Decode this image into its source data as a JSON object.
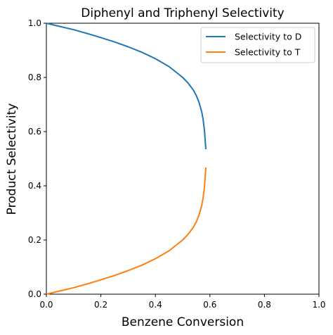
{
  "chart_data": {
    "type": "line",
    "title": "Diphenyl and Triphenyl Selectivity",
    "xlabel": "Benzene Conversion",
    "ylabel": "Product Selectivity",
    "xlim": [
      0.0,
      1.0
    ],
    "ylim": [
      0.0,
      1.0
    ],
    "xticks": [
      "0.0",
      "0.2",
      "0.4",
      "0.6",
      "0.8",
      "1.0"
    ],
    "yticks": [
      "0.0",
      "0.2",
      "0.4",
      "0.6",
      "0.8",
      "1.0"
    ],
    "grid": false,
    "legend_position": "upper-right",
    "series": [
      {
        "name": "Selectivity to D",
        "color": "#1f77b4",
        "x": [
          0.0,
          0.05,
          0.1,
          0.15,
          0.2,
          0.25,
          0.3,
          0.35,
          0.4,
          0.45,
          0.5,
          0.52,
          0.54,
          0.55,
          0.56,
          0.57,
          0.575,
          0.58,
          0.585
        ],
        "y": [
          1.0,
          0.988,
          0.976,
          0.962,
          0.947,
          0.931,
          0.913,
          0.893,
          0.869,
          0.84,
          0.8,
          0.779,
          0.752,
          0.733,
          0.708,
          0.672,
          0.645,
          0.605,
          0.535
        ]
      },
      {
        "name": "Selectivity to T",
        "color": "#ff7f0e",
        "x": [
          0.0,
          0.05,
          0.1,
          0.15,
          0.2,
          0.25,
          0.3,
          0.35,
          0.4,
          0.45,
          0.5,
          0.52,
          0.54,
          0.55,
          0.56,
          0.57,
          0.575,
          0.58,
          0.585
        ],
        "y": [
          0.0,
          0.012,
          0.024,
          0.038,
          0.053,
          0.069,
          0.087,
          0.107,
          0.131,
          0.16,
          0.2,
          0.221,
          0.248,
          0.267,
          0.292,
          0.328,
          0.355,
          0.395,
          0.468
        ]
      }
    ]
  }
}
